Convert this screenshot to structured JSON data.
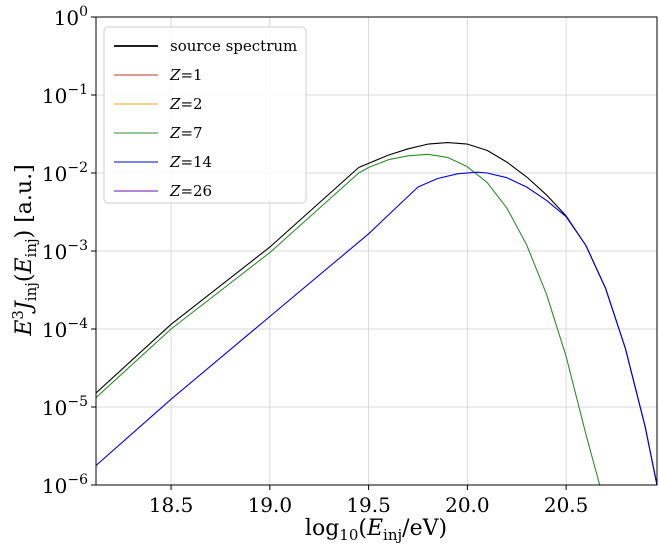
{
  "chart_data": {
    "type": "line",
    "xlabel": "log10(E_inj/eV)",
    "ylabel": "E^3 J_inj(E_inj) [a.u.]",
    "xlim": [
      18.12,
      20.96
    ],
    "ylim_log10": [
      -6,
      0
    ],
    "y_scale": "log",
    "grid": true,
    "legend_position": "top-left",
    "x_ticks": [
      18.5,
      19.0,
      19.5,
      20.0,
      20.5
    ],
    "x_tick_labels": [
      "18.5",
      "19.0",
      "19.5",
      "20.0",
      "20.5"
    ],
    "y_ticks_log10": [
      -6,
      -5,
      -4,
      -3,
      -2,
      -1,
      0
    ],
    "y_tick_base": "10",
    "y_tick_exponents": [
      "−6",
      "−5",
      "−4",
      "−3",
      "−2",
      "−1",
      "0"
    ],
    "series": [
      {
        "name": "source spectrum",
        "color": "#000000",
        "x": [
          18.12,
          18.5,
          19.0,
          19.45,
          19.6,
          19.7,
          19.8,
          19.9,
          20.0,
          20.1,
          20.2,
          20.3,
          20.4,
          20.5,
          20.6,
          20.7,
          20.8,
          20.9,
          20.96
        ],
        "log10_y": [
          -4.82,
          -3.94,
          -2.95,
          -1.93,
          -1.77,
          -1.69,
          -1.63,
          -1.61,
          -1.63,
          -1.71,
          -1.86,
          -2.05,
          -2.28,
          -2.55,
          -2.93,
          -3.48,
          -4.25,
          -5.25,
          -6.0
        ]
      },
      {
        "name": "Z=1",
        "color": "#c03030",
        "x": [],
        "log10_y": []
      },
      {
        "name": "Z=2",
        "color": "#f0a020",
        "x": [],
        "log10_y": []
      },
      {
        "name": "Z=7",
        "color": "#2e8b2e",
        "x": [
          18.12,
          18.5,
          19.0,
          19.45,
          19.5,
          19.6,
          19.7,
          19.8,
          19.9,
          20.0,
          20.1,
          20.2,
          20.3,
          20.4,
          20.5,
          20.6,
          20.67
        ],
        "log10_y": [
          -4.88,
          -4.0,
          -3.02,
          -2.0,
          -1.93,
          -1.83,
          -1.78,
          -1.76,
          -1.8,
          -1.92,
          -2.12,
          -2.45,
          -2.92,
          -3.55,
          -4.35,
          -5.35,
          -6.0
        ]
      },
      {
        "name": "Z=14",
        "color": "#0000ee",
        "x": [
          18.12,
          18.5,
          19.0,
          19.5,
          19.75,
          19.85,
          19.95,
          20.05,
          20.1,
          20.2,
          20.3,
          20.4,
          20.5,
          20.6,
          20.7,
          20.8,
          20.9,
          20.96
        ],
        "log10_y": [
          -5.75,
          -4.9,
          -3.84,
          -2.78,
          -2.18,
          -2.07,
          -2.01,
          -1.99,
          -2.0,
          -2.06,
          -2.18,
          -2.35,
          -2.56,
          -2.93,
          -3.48,
          -4.25,
          -5.25,
          -6.0
        ]
      },
      {
        "name": "Z=26",
        "color": "#6a0dad",
        "x": [],
        "log10_y": []
      }
    ]
  }
}
